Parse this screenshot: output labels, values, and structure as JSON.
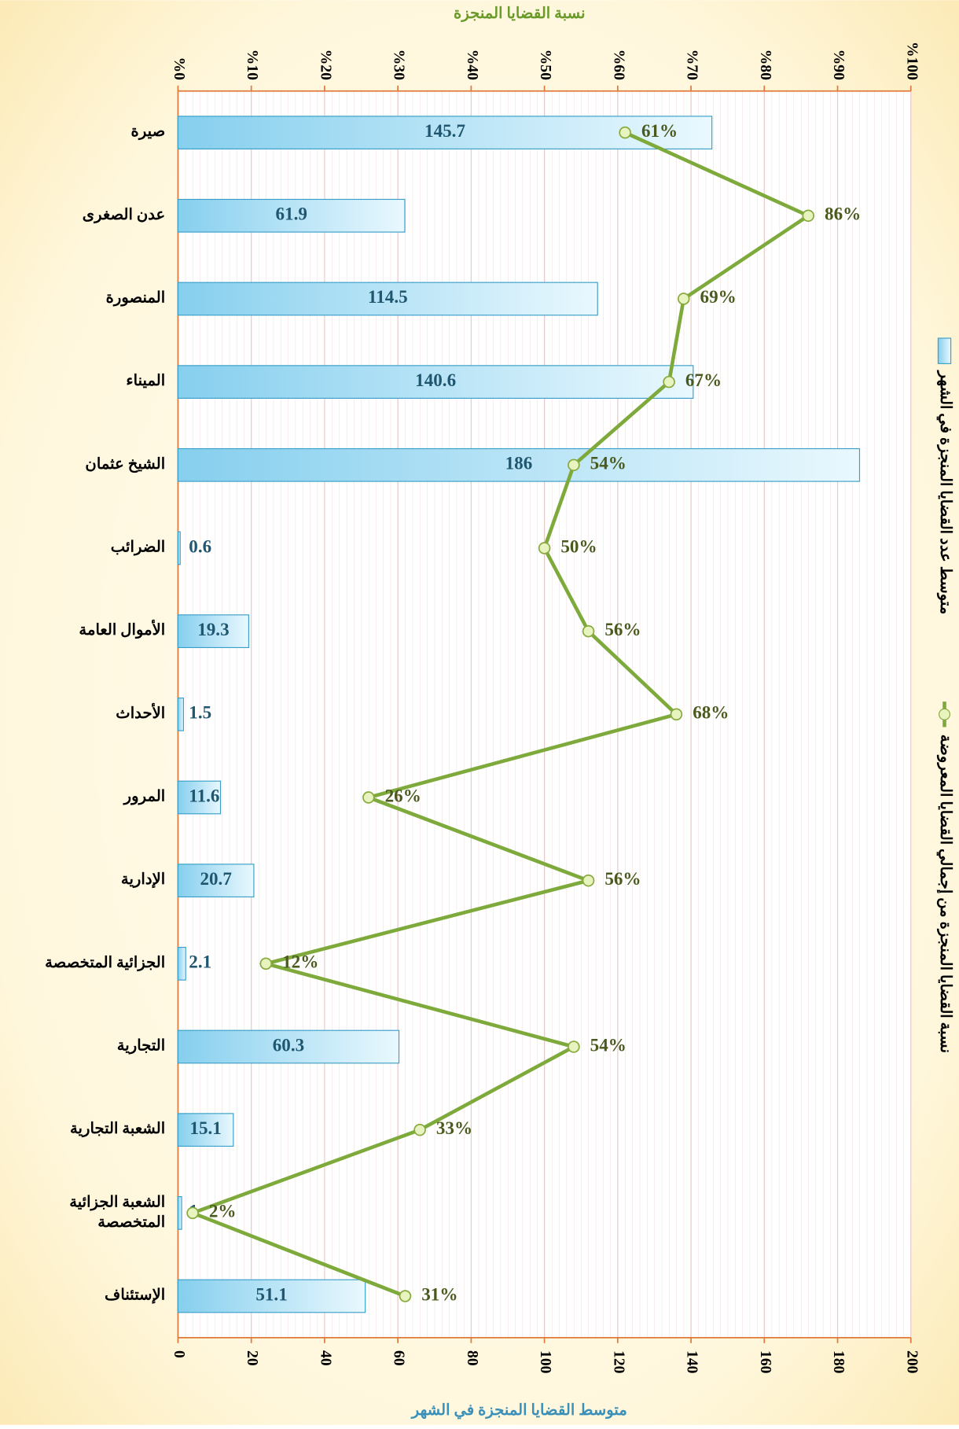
{
  "chart_data": {
    "type": "bar-line",
    "title": "نسبة القضايا المنجزة",
    "xlabel": "متوسط القضايا المنجزة في الشهر",
    "categories": [
      "صيرة",
      "عدن الصغرى",
      "المنصورة",
      "الميناء",
      "الشيخ عثمان",
      "الضرائب",
      "الأموال العامة",
      "الأحداث",
      "المرور",
      "الإدارية",
      "الجزائية المتخصصة",
      "التجارية",
      "الشعبة التجارية",
      "الشعبة الجزائية\nالمتخصصة",
      "الإستئناف"
    ],
    "series": [
      {
        "name": "متوسط عدد القضايا المنجزة في الشهر",
        "type": "bar",
        "color": "#7fcbea",
        "values": [
          145.7,
          61.9,
          114.5,
          140.6,
          186,
          0.6,
          19.3,
          1.5,
          11.6,
          20.7,
          2.1,
          60.3,
          15.1,
          1,
          51.1
        ]
      },
      {
        "name": "نسبة القضايا المنجزة من إجمالي القضايا المعروضة",
        "type": "line",
        "axis": "y2",
        "color": "#7eaa3c",
        "values": [
          61,
          86,
          69,
          67,
          54,
          50,
          56,
          68,
          26,
          56,
          12,
          54,
          33,
          2,
          31
        ],
        "value_labels": [
          "61%",
          "86%",
          "69%",
          "67%",
          "54%",
          "50%",
          "56%",
          "68%",
          "26%",
          "56%",
          "12%",
          "54%",
          "33%",
          "2%",
          "31%"
        ]
      }
    ],
    "ylim": [
      0,
      200
    ],
    "yticks": [
      0,
      20,
      40,
      60,
      80,
      100,
      120,
      140,
      160,
      180,
      200
    ],
    "y2lim": [
      0,
      100
    ],
    "y2ticks": [
      {
        "value": 0,
        "label": "%0"
      },
      {
        "value": 10,
        "label": "%10"
      },
      {
        "value": 20,
        "label": "%20"
      },
      {
        "value": 30,
        "label": "%30"
      },
      {
        "value": 40,
        "label": "%40"
      },
      {
        "value": 50,
        "label": "%50"
      },
      {
        "value": 60,
        "label": "%60"
      },
      {
        "value": 70,
        "label": "%70"
      },
      {
        "value": 80,
        "label": "%80"
      },
      {
        "value": 90,
        "label": "%90"
      },
      {
        "value": 100,
        "label": "%100"
      }
    ],
    "grid": true,
    "legend": "right"
  }
}
